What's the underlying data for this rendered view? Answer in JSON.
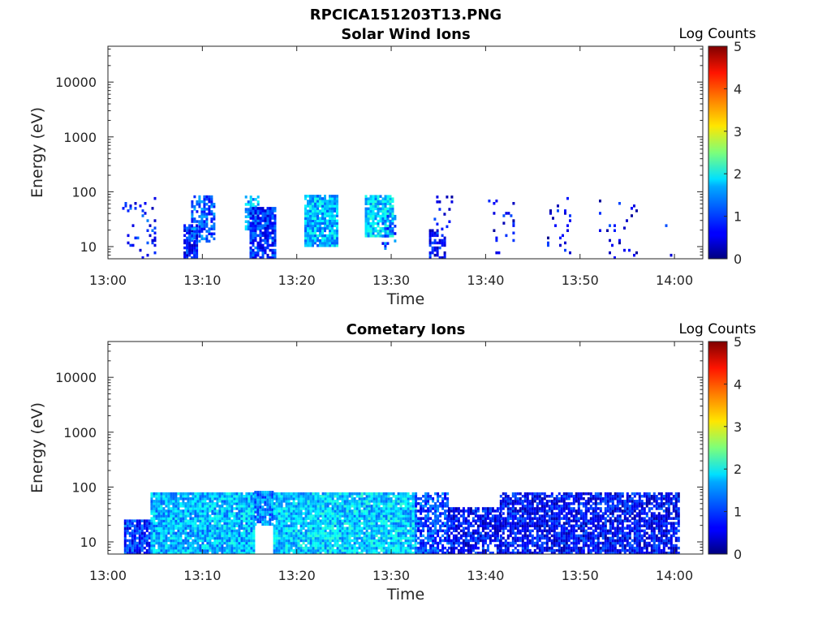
{
  "figure_title": "RPCICA151203T13.PNG",
  "chart_data": [
    {
      "type": "heatmap",
      "title": "Solar Wind Ions",
      "xlabel": "Time",
      "ylabel": "Energy (eV)",
      "x_ticks": [
        "13:00",
        "13:10",
        "13:20",
        "13:30",
        "13:40",
        "13:50",
        "14:00"
      ],
      "x_range_minutes": [
        0,
        63
      ],
      "y_scale": "log",
      "y_ticks": [
        "10",
        "100",
        "1000",
        "10000"
      ],
      "y_range": [
        6,
        45000
      ],
      "colorbar": {
        "label": "Log Counts",
        "range": [
          0,
          5
        ],
        "ticks": [
          "0",
          "1",
          "2",
          "3",
          "4",
          "5"
        ],
        "colormap": "jet"
      },
      "grid": false,
      "blobs": [
        {
          "t0": 1.5,
          "t1": 5.0,
          "e0": 6,
          "e1": 80,
          "level": 0.7,
          "density": 0.12
        },
        {
          "t0": 8.0,
          "t1": 9.5,
          "e0": 6,
          "e1": 25,
          "level": 0.7,
          "density": 0.85
        },
        {
          "t0": 8.8,
          "t1": 11.2,
          "e0": 12,
          "e1": 80,
          "level": 1.0,
          "density": 0.6
        },
        {
          "t0": 14.5,
          "t1": 15.8,
          "e0": 20,
          "e1": 80,
          "level": 1.5,
          "density": 0.65
        },
        {
          "t0": 15.0,
          "t1": 17.8,
          "e0": 6,
          "e1": 50,
          "level": 0.8,
          "density": 0.85
        },
        {
          "t0": 20.8,
          "t1": 24.3,
          "e0": 10,
          "e1": 80,
          "level": 1.5,
          "density": 0.9
        },
        {
          "t0": 27.2,
          "t1": 30.2,
          "e0": 15,
          "e1": 80,
          "level": 1.6,
          "density": 0.85
        },
        {
          "t0": 29.0,
          "t1": 30.5,
          "e0": 8,
          "e1": 35,
          "level": 0.9,
          "density": 0.35
        },
        {
          "t0": 34.0,
          "t1": 35.8,
          "e0": 6,
          "e1": 20,
          "level": 0.6,
          "density": 0.65
        },
        {
          "t0": 34.5,
          "t1": 36.5,
          "e0": 20,
          "e1": 80,
          "level": 0.5,
          "density": 0.1
        },
        {
          "t0": 40.0,
          "t1": 43.0,
          "e0": 6,
          "e1": 80,
          "level": 0.5,
          "density": 0.06
        },
        {
          "t0": 46.5,
          "t1": 49.0,
          "e0": 6,
          "e1": 80,
          "level": 0.5,
          "density": 0.09
        },
        {
          "t0": 52.0,
          "t1": 56.0,
          "e0": 6,
          "e1": 80,
          "level": 0.5,
          "density": 0.06
        },
        {
          "t0": 59.0,
          "t1": 60.0,
          "e0": 6,
          "e1": 80,
          "level": 0.5,
          "density": 0.05
        }
      ]
    },
    {
      "type": "heatmap",
      "title": "Cometary Ions",
      "xlabel": "Time",
      "ylabel": "Energy (eV)",
      "x_ticks": [
        "13:00",
        "13:10",
        "13:20",
        "13:30",
        "13:40",
        "13:50",
        "14:00"
      ],
      "x_range_minutes": [
        0,
        63
      ],
      "y_scale": "log",
      "y_ticks": [
        "10",
        "100",
        "1000",
        "10000"
      ],
      "y_range": [
        6,
        45000
      ],
      "colorbar": {
        "label": "Log Counts",
        "range": [
          0,
          5
        ],
        "ticks": [
          "0",
          "1",
          "2",
          "3",
          "4",
          "5"
        ],
        "colormap": "jet"
      },
      "grid": false,
      "blobs": [
        {
          "t0": 1.7,
          "t1": 4.5,
          "e0": 6,
          "e1": 25,
          "level": 0.8,
          "density": 0.9
        },
        {
          "t0": 4.5,
          "t1": 15.5,
          "e0": 6,
          "e1": 80,
          "level": 1.5,
          "density": 0.95
        },
        {
          "t0": 15.5,
          "t1": 17.5,
          "e0": 20,
          "e1": 80,
          "level": 1.2,
          "density": 0.9
        },
        {
          "t0": 17.5,
          "t1": 32.5,
          "e0": 6,
          "e1": 80,
          "level": 1.6,
          "density": 0.95
        },
        {
          "t0": 32.5,
          "t1": 36.0,
          "e0": 6,
          "e1": 80,
          "level": 0.9,
          "density": 0.7
        },
        {
          "t0": 36.0,
          "t1": 41.5,
          "e0": 6,
          "e1": 40,
          "level": 0.6,
          "density": 0.75
        },
        {
          "t0": 41.5,
          "t1": 60.5,
          "e0": 6,
          "e1": 80,
          "level": 0.6,
          "density": 0.8
        }
      ]
    }
  ]
}
